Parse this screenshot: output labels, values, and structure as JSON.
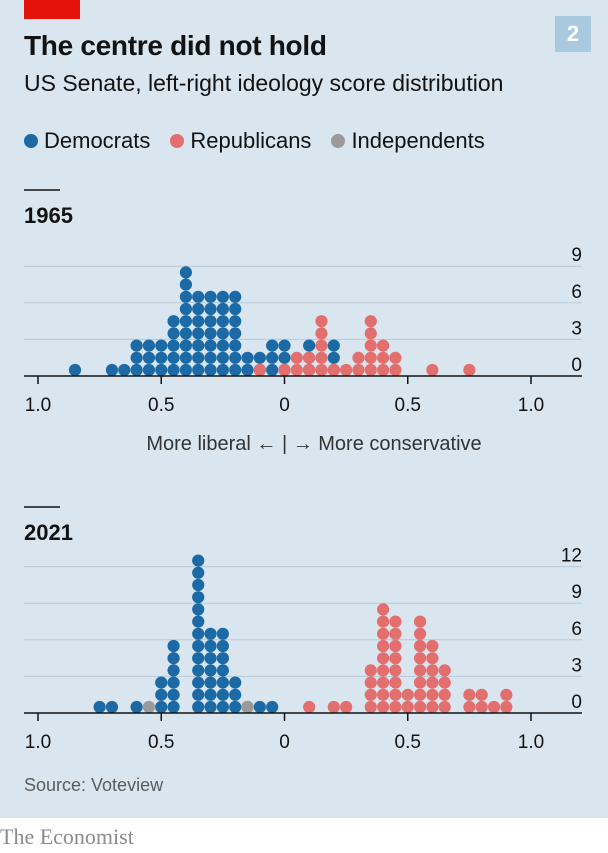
{
  "header": {
    "title": "The centre did not hold",
    "subtitle": "US Senate, left-right ideology score distribution",
    "badge": "2"
  },
  "legend": [
    {
      "label": "Democrats",
      "color": "#1b6aa5"
    },
    {
      "label": "Republicans",
      "color": "#e36e6e"
    },
    {
      "label": "Independents",
      "color": "#9a9a9a"
    }
  ],
  "source": "Source: Voteview",
  "logo": "The Economist",
  "chart_data": [
    {
      "type": "dot-histogram",
      "title": "1965",
      "xlabel": "More liberal ← | → More conservative",
      "x_tick_labels": [
        "1.0",
        "0.5",
        "0",
        "0.5",
        "1.0"
      ],
      "x_ticks": [
        -1.0,
        -0.5,
        0,
        0.5,
        1.0
      ],
      "y_ticks": [
        0,
        3,
        6,
        9
      ],
      "xlim": [
        -1.0,
        1.0
      ],
      "ylim": [
        0,
        9
      ],
      "bin_width": 0.05,
      "series": [
        {
          "name": "Democrats",
          "color": "#1b6aa5",
          "bins": [
            [
              -0.85,
              1
            ],
            [
              -0.7,
              1
            ],
            [
              -0.65,
              1
            ],
            [
              -0.6,
              3
            ],
            [
              -0.55,
              3
            ],
            [
              -0.5,
              3
            ],
            [
              -0.45,
              5
            ],
            [
              -0.4,
              9
            ],
            [
              -0.35,
              7
            ],
            [
              -0.3,
              7
            ],
            [
              -0.25,
              7
            ],
            [
              -0.2,
              7
            ],
            [
              -0.15,
              2
            ],
            [
              -0.1,
              2
            ],
            [
              -0.05,
              3
            ],
            [
              0,
              3
            ],
            [
              0.1,
              3
            ],
            [
              0.2,
              3
            ]
          ]
        },
        {
          "name": "Republicans",
          "color": "#e36e6e",
          "bins": [
            [
              -0.1,
              1
            ],
            [
              0,
              1
            ],
            [
              0.05,
              2
            ],
            [
              0.1,
              2
            ],
            [
              0.15,
              5
            ],
            [
              0.2,
              1
            ],
            [
              0.25,
              1
            ],
            [
              0.3,
              2
            ],
            [
              0.35,
              5
            ],
            [
              0.4,
              3
            ],
            [
              0.45,
              2
            ],
            [
              0.6,
              1
            ],
            [
              0.75,
              1
            ]
          ]
        },
        {
          "name": "Independents",
          "color": "#9a9a9a",
          "bins": []
        }
      ]
    },
    {
      "type": "dot-histogram",
      "title": "2021",
      "xlabel": "",
      "x_tick_labels": [
        "1.0",
        "0.5",
        "0",
        "0.5",
        "1.0"
      ],
      "x_ticks": [
        -1.0,
        -0.5,
        0,
        0.5,
        1.0
      ],
      "y_ticks": [
        0,
        3,
        6,
        9,
        12
      ],
      "xlim": [
        -1.0,
        1.0
      ],
      "ylim": [
        0,
        12
      ],
      "bin_width": 0.05,
      "series": [
        {
          "name": "Democrats",
          "color": "#1b6aa5",
          "bins": [
            [
              -0.75,
              1
            ],
            [
              -0.7,
              1
            ],
            [
              -0.6,
              1
            ],
            [
              -0.5,
              3
            ],
            [
              -0.45,
              6
            ],
            [
              -0.35,
              13
            ],
            [
              -0.3,
              7
            ],
            [
              -0.25,
              7
            ],
            [
              -0.2,
              3
            ],
            [
              -0.15,
              1
            ],
            [
              -0.1,
              1
            ],
            [
              -0.05,
              1
            ]
          ]
        },
        {
          "name": "Republicans",
          "color": "#e36e6e",
          "bins": [
            [
              0.1,
              1
            ],
            [
              0.2,
              1
            ],
            [
              0.25,
              1
            ],
            [
              0.35,
              4
            ],
            [
              0.4,
              9
            ],
            [
              0.45,
              8
            ],
            [
              0.5,
              2
            ],
            [
              0.55,
              8
            ],
            [
              0.6,
              6
            ],
            [
              0.65,
              4
            ],
            [
              0.75,
              2
            ],
            [
              0.8,
              2
            ],
            [
              0.85,
              1
            ],
            [
              0.9,
              2
            ]
          ]
        },
        {
          "name": "Independents",
          "color": "#9a9a9a",
          "bins": [
            [
              -0.55,
              1
            ],
            [
              -0.15,
              1
            ]
          ]
        }
      ]
    }
  ]
}
